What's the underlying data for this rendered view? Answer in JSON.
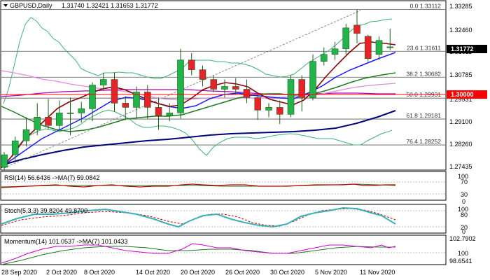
{
  "header": {
    "symbol": "GBPUSD,Daily",
    "ohlc": "1.31740 1.32421 1.31653 1.31772"
  },
  "price_axis": {
    "ticks": [
      "1.33285",
      "1.32460",
      "1.31611",
      "1.30785",
      "1.30000",
      "1.29931",
      "1.29100",
      "1.28260",
      "1.27435"
    ],
    "current_price": "1.31772",
    "marked_level": "1.30000",
    "current_price_color": "#000000",
    "marked_level_color": "#ff0000"
  },
  "fibonacci": [
    {
      "label": "0.0 1.33112",
      "value": 1.33112
    },
    {
      "label": "23.6 1.31611",
      "value": 1.31611
    },
    {
      "label": "38.2 1.30682",
      "value": 1.30682
    },
    {
      "label": "50.0 1.29931",
      "value": 1.29931
    },
    {
      "label": "61.8 1.29181",
      "value": 1.29181
    },
    {
      "label": "76.4 1.28252",
      "value": 1.28252
    }
  ],
  "time_axis": [
    "28 Sep 2020",
    "2 Oct 2020",
    "8 Oct 2020",
    "14 Oct 2020",
    "20 Oct 2020",
    "26 Oct 2020",
    "30 Oct 2020",
    "5 Nov 2020",
    "11 Nov 2020"
  ],
  "indicators": {
    "rsi": {
      "label": "RSI(14) 56.6436 ->MA(7) 59.0842",
      "levels": [
        "100",
        "70",
        "30",
        "0"
      ]
    },
    "stoch": {
      "label": "Stoch(5,3,3) 39.8204 49.8700",
      "levels": [
        "100",
        "80",
        "20",
        "0"
      ]
    },
    "momentum": {
      "label": "Momentum(14) 101.0537 ->MA(7) 101.0433",
      "levels": [
        "102.7902",
        "100",
        "98.6541"
      ]
    }
  },
  "colors": {
    "bull": "#22b34a",
    "bear": "#e8212a",
    "ma_red": "#8b0000",
    "ma_blue": "#1a1aff",
    "ma_green": "#1e7b1e",
    "ma_navy": "#00007a",
    "ma_pink": "#d05cd0",
    "ma_magenta": "#b000b0",
    "bollinger": "#3cb371"
  },
  "chart_data": {
    "type": "candlestick",
    "symbol": "GBPUSD",
    "ylim": [
      1.2735,
      1.334
    ],
    "candles": [
      {
        "x": "28 Sep 2020",
        "o": 1.2745,
        "h": 1.28,
        "l": 1.2735,
        "c": 1.279
      },
      {
        "x": "29 Sep 2020",
        "o": 1.279,
        "h": 1.2855,
        "l": 1.277,
        "c": 1.284
      },
      {
        "x": "30 Sep 2020",
        "o": 1.284,
        "h": 1.2925,
        "l": 1.282,
        "c": 1.288
      },
      {
        "x": "1 Oct 2020",
        "o": 1.288,
        "h": 1.2975,
        "l": 1.286,
        "c": 1.2925
      },
      {
        "x": "2 Oct 2020",
        "o": 1.2925,
        "h": 1.299,
        "l": 1.288,
        "c": 1.2895
      },
      {
        "x": "5 Oct 2020",
        "o": 1.2895,
        "h": 1.2985,
        "l": 1.2875,
        "c": 1.294
      },
      {
        "x": "6 Oct 2020",
        "o": 1.294,
        "h": 1.2995,
        "l": 1.286,
        "c": 1.294
      },
      {
        "x": "7 Oct 2020",
        "o": 1.294,
        "h": 1.298,
        "l": 1.2905,
        "c": 1.2955
      },
      {
        "x": "8 Oct 2020",
        "o": 1.2955,
        "h": 1.305,
        "l": 1.291,
        "c": 1.304
      },
      {
        "x": "9 Oct 2020",
        "o": 1.304,
        "h": 1.3085,
        "l": 1.302,
        "c": 1.306
      },
      {
        "x": "12 Oct 2020",
        "o": 1.306,
        "h": 1.3085,
        "l": 1.2945,
        "c": 1.2975
      },
      {
        "x": "13 Oct 2020",
        "o": 1.2975,
        "h": 1.3,
        "l": 1.2915,
        "c": 1.296
      },
      {
        "x": "14 Oct 2020",
        "o": 1.296,
        "h": 1.3035,
        "l": 1.292,
        "c": 1.3015
      },
      {
        "x": "15 Oct 2020",
        "o": 1.3015,
        "h": 1.304,
        "l": 1.292,
        "c": 1.296
      },
      {
        "x": "16 Oct 2020",
        "o": 1.296,
        "h": 1.2995,
        "l": 1.288,
        "c": 1.293
      },
      {
        "x": "19 Oct 2020",
        "o": 1.293,
        "h": 1.2975,
        "l": 1.291,
        "c": 1.294
      },
      {
        "x": "20 Oct 2020",
        "o": 1.294,
        "h": 1.317,
        "l": 1.292,
        "c": 1.313
      },
      {
        "x": "21 Oct 2020",
        "o": 1.313,
        "h": 1.3155,
        "l": 1.3075,
        "c": 1.3095
      },
      {
        "x": "22 Oct 2020",
        "o": 1.3095,
        "h": 1.311,
        "l": 1.3035,
        "c": 1.306
      },
      {
        "x": "23 Oct 2020",
        "o": 1.306,
        "h": 1.3075,
        "l": 1.3015,
        "c": 1.3025
      },
      {
        "x": "26 Oct 2020",
        "o": 1.3025,
        "h": 1.306,
        "l": 1.2995,
        "c": 1.3035
      },
      {
        "x": "27 Oct 2020",
        "o": 1.3035,
        "h": 1.3065,
        "l": 1.3005,
        "c": 1.3025
      },
      {
        "x": "28 Oct 2020",
        "o": 1.3025,
        "h": 1.306,
        "l": 1.2975,
        "c": 1.2995
      },
      {
        "x": "29 Oct 2020",
        "o": 1.2995,
        "h": 1.3005,
        "l": 1.2915,
        "c": 1.295
      },
      {
        "x": "30 Oct 2020",
        "o": 1.295,
        "h": 1.2975,
        "l": 1.2925,
        "c": 1.296
      },
      {
        "x": "2 Nov 2020",
        "o": 1.296,
        "h": 1.2985,
        "l": 1.29,
        "c": 1.2935
      },
      {
        "x": "3 Nov 2020",
        "o": 1.2935,
        "h": 1.3075,
        "l": 1.2925,
        "c": 1.306
      },
      {
        "x": "4 Nov 2020",
        "o": 1.306,
        "h": 1.3075,
        "l": 1.2945,
        "c": 1.2995
      },
      {
        "x": "5 Nov 2020",
        "o": 1.2995,
        "h": 1.315,
        "l": 1.2985,
        "c": 1.3125
      },
      {
        "x": "6 Nov 2020",
        "o": 1.3125,
        "h": 1.3175,
        "l": 1.311,
        "c": 1.315
      },
      {
        "x": "9 Nov 2020",
        "o": 1.315,
        "h": 1.3195,
        "l": 1.313,
        "c": 1.317
      },
      {
        "x": "10 Nov 2020",
        "o": 1.317,
        "h": 1.326,
        "l": 1.315,
        "c": 1.3245
      },
      {
        "x": "11 Nov 2020",
        "o": 1.3255,
        "h": 1.331,
        "l": 1.319,
        "c": 1.3225
      },
      {
        "x": "12 Nov 2020",
        "o": 1.3215,
        "h": 1.322,
        "l": 1.3125,
        "c": 1.3135
      },
      {
        "x": "13 Nov 2020",
        "o": 1.315,
        "h": 1.3215,
        "l": 1.313,
        "c": 1.32
      },
      {
        "x": "16 Nov 2020",
        "o": 1.3174,
        "h": 1.3242,
        "l": 1.3165,
        "c": 1.3177
      }
    ]
  }
}
